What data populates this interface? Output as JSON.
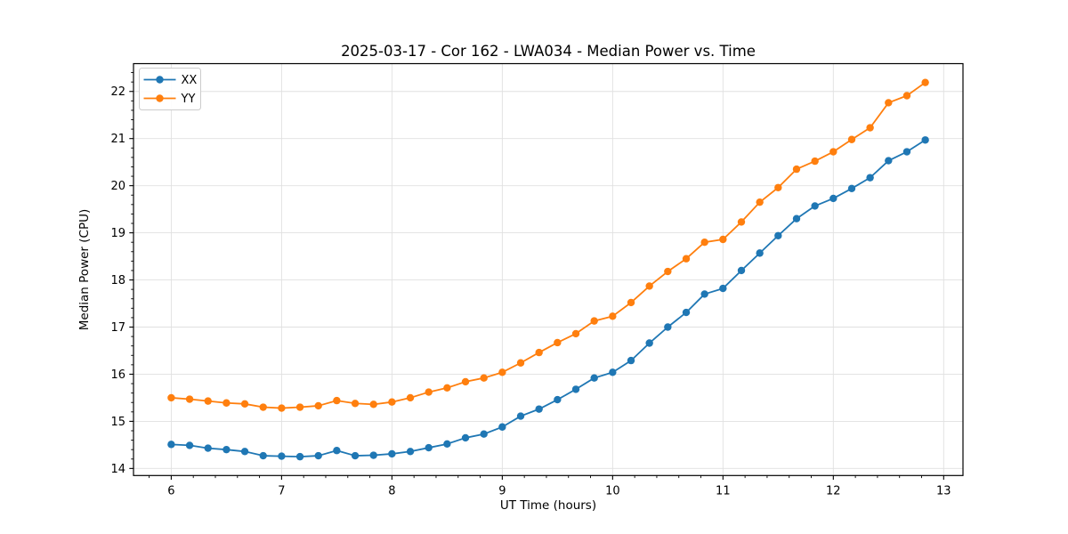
{
  "chart_data": {
    "type": "line",
    "title": "2025-03-17 - Cor 162 - LWA034 - Median Power vs. Time",
    "xlabel": "UT Time (hours)",
    "ylabel": "Median Power (CPU)",
    "xlim": [
      5.658,
      13.175
    ],
    "ylim": [
      13.85,
      22.59
    ],
    "x_ticks": [
      6,
      7,
      8,
      9,
      10,
      11,
      12,
      13
    ],
    "y_ticks": [
      14,
      15,
      16,
      17,
      18,
      19,
      20,
      21,
      22
    ],
    "minor_tick_step": 0.2,
    "grid": "major",
    "grid_color": "#e0e0e0",
    "legend_position": "upper-left",
    "x": [
      6.0,
      6.1667,
      6.3333,
      6.5,
      6.6667,
      6.8333,
      7.0,
      7.1667,
      7.3333,
      7.5,
      7.6667,
      7.8333,
      8.0,
      8.1667,
      8.3333,
      8.5,
      8.6667,
      8.8333,
      9.0,
      9.1667,
      9.3333,
      9.5,
      9.6667,
      9.8333,
      10.0,
      10.1667,
      10.3333,
      10.5,
      10.6667,
      10.8333,
      11.0,
      11.1667,
      11.3333,
      11.5,
      11.6667,
      11.8333,
      12.0,
      12.1667,
      12.3333,
      12.5,
      12.6667,
      12.8333
    ],
    "series": [
      {
        "name": "XX",
        "color": "#1f77b4",
        "values": [
          14.51,
          14.49,
          14.43,
          14.4,
          14.36,
          14.27,
          14.26,
          14.25,
          14.27,
          14.38,
          14.27,
          14.28,
          14.31,
          14.36,
          14.44,
          14.52,
          14.65,
          14.73,
          14.88,
          15.11,
          15.26,
          15.46,
          15.68,
          15.92,
          16.04,
          16.29,
          16.66,
          17.0,
          17.31,
          17.7,
          17.82,
          18.2,
          18.57,
          18.94,
          19.3,
          19.57,
          19.73,
          19.94,
          20.17,
          20.53,
          20.72,
          20.97
        ]
      },
      {
        "name": "YY",
        "color": "#ff7f0e",
        "values": [
          15.5,
          15.47,
          15.43,
          15.39,
          15.37,
          15.3,
          15.28,
          15.3,
          15.33,
          15.44,
          15.38,
          15.36,
          15.41,
          15.5,
          15.62,
          15.71,
          15.84,
          15.92,
          16.04,
          16.24,
          16.46,
          16.67,
          16.86,
          17.13,
          17.23,
          17.52,
          17.87,
          18.18,
          18.45,
          18.8,
          18.86,
          19.23,
          19.65,
          19.96,
          20.35,
          20.52,
          20.72,
          20.98,
          21.23,
          21.76,
          21.91,
          22.19
        ]
      }
    ]
  }
}
